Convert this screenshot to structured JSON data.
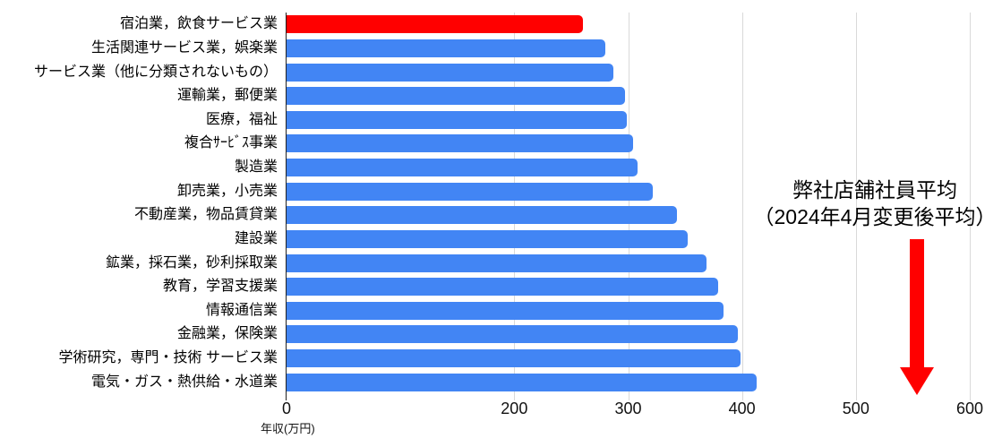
{
  "chart_data": {
    "type": "bar",
    "orientation": "horizontal",
    "title": "",
    "xlabel": "年収(万円)",
    "ylabel": "",
    "xlim": [
      0,
      600
    ],
    "x_ticks": [
      0,
      200,
      300,
      400,
      500,
      600
    ],
    "grid": "vertical gridlines at labeled ticks only, no gridline at 100",
    "legend": "none",
    "categories": [
      "宿泊業，飲食サービス業",
      "生活関連サービス業，娯楽業",
      "サービス業（他に分類されないもの）",
      "運輸業，郵便業",
      "医療，福祉",
      "複合ｻｰﾋﾞｽ事業",
      "製造業",
      "卸売業，小売業",
      "不動産業，物品賃貸業",
      "建設業",
      "鉱業，採石業，砂利採取業",
      "教育，学習支援業",
      "情報通信業",
      "金融業，保険業",
      "学術研究，専門・技術 サービス業",
      "電気・ガス・熱供給・水道業"
    ],
    "values": [
      260,
      280,
      287,
      297,
      299,
      304,
      308,
      322,
      343,
      352,
      369,
      379,
      384,
      396,
      399,
      413
    ],
    "highlight_index": 0,
    "colors": {
      "highlight_bar": "#ff0000",
      "default_bar": "#4285f4",
      "gridline": "#d9d9d9",
      "axis_line": "#222222"
    },
    "annotation": {
      "line1": "弊社店舗社員平均",
      "line2": "（2024年4月変更後平均）",
      "arrow_value": 557,
      "arrow_color": "#ff0000",
      "arrow_direction": "down"
    }
  }
}
